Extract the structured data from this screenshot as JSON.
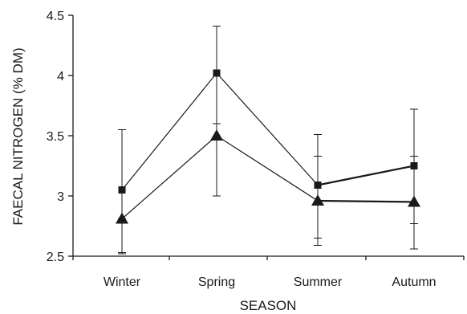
{
  "chart_data": {
    "type": "line",
    "title": "",
    "xlabel": "SEASON",
    "ylabel": "FAECAL NITROGEN (% DM)",
    "categories": [
      "Winter",
      "Spring",
      "Summer",
      "Autumn"
    ],
    "ylim": [
      2.5,
      4.5
    ],
    "yticks": [
      2.5,
      3,
      3.5,
      4,
      4.5
    ],
    "ytick_labels": [
      "2.5",
      "3",
      "3.5",
      "4",
      "4.5"
    ],
    "grid": false,
    "legend": "none",
    "series": [
      {
        "marker": "square",
        "values": [
          3.05,
          4.02,
          3.09,
          3.25
        ],
        "error_low": [
          2.53,
          3.6,
          2.65,
          2.77
        ],
        "error_high": [
          3.55,
          4.41,
          3.51,
          3.72
        ],
        "color": "#1a1a1a"
      },
      {
        "marker": "triangle",
        "values": [
          2.81,
          3.5,
          2.96,
          2.95
        ],
        "error_low": [
          2.52,
          3.0,
          2.59,
          2.56
        ],
        "error_high": [
          2.81,
          3.6,
          3.33,
          3.33
        ],
        "color": "#1a1a1a"
      }
    ]
  }
}
